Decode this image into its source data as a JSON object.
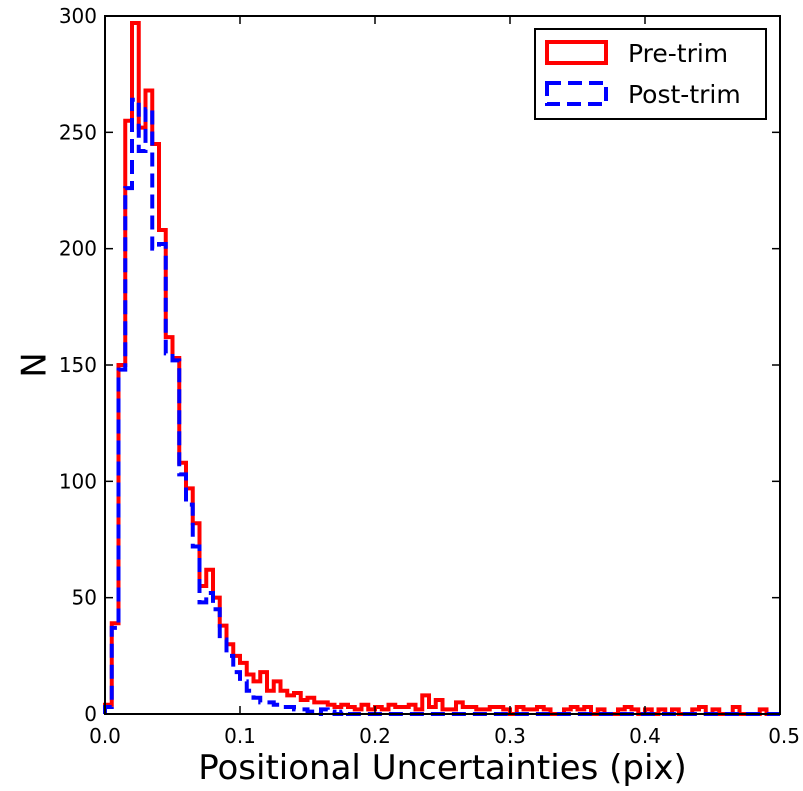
{
  "chart_data": {
    "type": "histogram",
    "title": "",
    "xlabel": "Positional Uncertainties (pix)",
    "ylabel": "N",
    "xlim": [
      0.0,
      0.5
    ],
    "ylim": [
      0,
      300
    ],
    "x_ticks": [
      "0.0",
      "0.1",
      "0.2",
      "0.3",
      "0.4",
      "0.5"
    ],
    "y_ticks": [
      "0",
      "50",
      "100",
      "150",
      "200",
      "250",
      "300"
    ],
    "grid": false,
    "legend_position": "top-right",
    "bin_width": 0.005,
    "bin_start": 0.0,
    "series": [
      {
        "name": "Pre-trim",
        "color": "#ff0000",
        "linestyle": "solid",
        "values": [
          4,
          39,
          150,
          255,
          297,
          252,
          268,
          245,
          208,
          162,
          153,
          108,
          97,
          82,
          55,
          62,
          50,
          38,
          30,
          25,
          22,
          17,
          14,
          18,
          10,
          14,
          10,
          8,
          9,
          6,
          7,
          5,
          5,
          4,
          3,
          4,
          3,
          2,
          4,
          2,
          3,
          2,
          4,
          3,
          3,
          4,
          2,
          8,
          3,
          6,
          2,
          2,
          5,
          3,
          3,
          2,
          2,
          3,
          3,
          2,
          0,
          3,
          2,
          2,
          3,
          2,
          0,
          0,
          2,
          3,
          2,
          3,
          0,
          2,
          0,
          0,
          2,
          3,
          2,
          0,
          2,
          0,
          2,
          0,
          2,
          0,
          0,
          2,
          3,
          0,
          2,
          0,
          0,
          3,
          0,
          0,
          0,
          2,
          0,
          0
        ]
      },
      {
        "name": "Post-trim",
        "color": "#0000ff",
        "linestyle": "dashed",
        "values": [
          3,
          37,
          148,
          226,
          264,
          242,
          260,
          200,
          202,
          155,
          152,
          103,
          90,
          72,
          48,
          52,
          45,
          32,
          25,
          18,
          14,
          10,
          7,
          5,
          5,
          4,
          3,
          3,
          2,
          2,
          1,
          0,
          2,
          1,
          0,
          1,
          0,
          0,
          0,
          0,
          0,
          0,
          0,
          0,
          0,
          0,
          0,
          0,
          0,
          0,
          0,
          0,
          0,
          0,
          0,
          0,
          0,
          0,
          0,
          0,
          0,
          0,
          0,
          0,
          0,
          0,
          0,
          0,
          0,
          0,
          0,
          0,
          0,
          0,
          0,
          0,
          0,
          0,
          0,
          0,
          0,
          0,
          0,
          0,
          0,
          0,
          0,
          0,
          0,
          0,
          0,
          0,
          0,
          0,
          0,
          0,
          0,
          0,
          0,
          0
        ]
      }
    ]
  }
}
